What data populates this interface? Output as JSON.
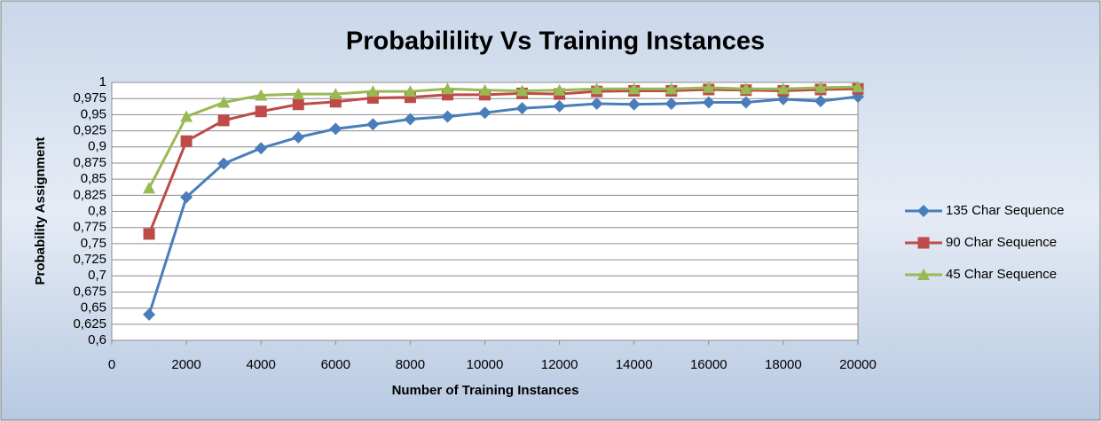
{
  "chart_data": {
    "type": "line",
    "title": "Probabilility Vs Training Instances",
    "xlabel": "Number of Training Instances",
    "ylabel": "Probability Assignment",
    "x": [
      1000,
      2000,
      3000,
      4000,
      5000,
      6000,
      7000,
      8000,
      9000,
      10000,
      11000,
      12000,
      13000,
      14000,
      15000,
      16000,
      17000,
      18000,
      19000,
      20000
    ],
    "series": [
      {
        "name": "135 Char Sequence",
        "color": "#4a7ebb",
        "marker": "diamond",
        "values": [
          0.64,
          0.822,
          0.874,
          0.898,
          0.915,
          0.928,
          0.935,
          0.943,
          0.947,
          0.953,
          0.96,
          0.963,
          0.967,
          0.966,
          0.967,
          0.969,
          0.969,
          0.974,
          0.971,
          0.978
        ]
      },
      {
        "name": "90 Char Sequence",
        "color": "#be4b48",
        "marker": "square",
        "values": [
          0.765,
          0.909,
          0.941,
          0.955,
          0.966,
          0.97,
          0.976,
          0.977,
          0.981,
          0.981,
          0.983,
          0.982,
          0.986,
          0.987,
          0.987,
          0.989,
          0.988,
          0.987,
          0.989,
          0.99
        ]
      },
      {
        "name": "45 Char Sequence",
        "color": "#98b954",
        "marker": "triangle",
        "values": [
          0.836,
          0.947,
          0.969,
          0.98,
          0.982,
          0.982,
          0.986,
          0.986,
          0.99,
          0.988,
          0.987,
          0.988,
          0.99,
          0.99,
          0.99,
          0.992,
          0.99,
          0.99,
          0.992,
          0.993
        ]
      }
    ],
    "xlim": [
      0,
      20000
    ],
    "xticks": [
      0,
      2000,
      4000,
      6000,
      8000,
      10000,
      12000,
      14000,
      16000,
      18000,
      20000
    ],
    "ylim": [
      0.6,
      1
    ],
    "yticks": [
      {
        "value": 0.6,
        "label": "0,6"
      },
      {
        "value": 0.625,
        "label": "0,625"
      },
      {
        "value": 0.65,
        "label": "0,65"
      },
      {
        "value": 0.675,
        "label": "0,675"
      },
      {
        "value": 0.7,
        "label": "0,7"
      },
      {
        "value": 0.725,
        "label": "0,725"
      },
      {
        "value": 0.75,
        "label": "0,75"
      },
      {
        "value": 0.775,
        "label": "0,775"
      },
      {
        "value": 0.8,
        "label": "0,8"
      },
      {
        "value": 0.825,
        "label": "0,825"
      },
      {
        "value": 0.85,
        "label": "0,85"
      },
      {
        "value": 0.875,
        "label": "0,875"
      },
      {
        "value": 0.9,
        "label": "0,9"
      },
      {
        "value": 0.925,
        "label": "0,925"
      },
      {
        "value": 0.95,
        "label": "0,95"
      },
      {
        "value": 0.975,
        "label": "0,975"
      },
      1
    ],
    "grid": true,
    "legend": "right"
  }
}
